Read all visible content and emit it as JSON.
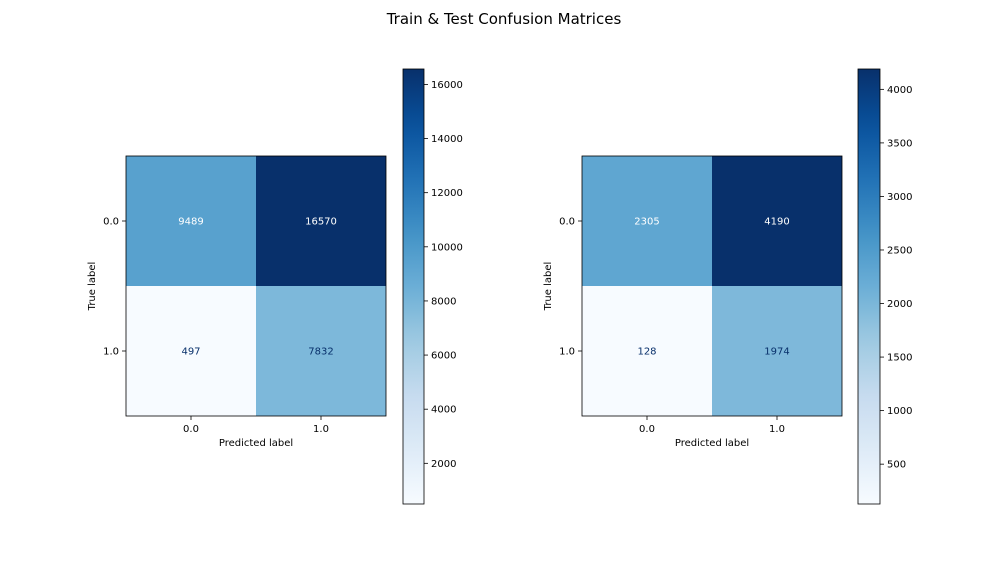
{
  "figure": {
    "title": "Train & Test Confusion Matrices"
  },
  "chart_data": [
    {
      "type": "heatmap",
      "title": "",
      "xlabel": "Predicted label",
      "ylabel": "True label",
      "x_categories": [
        "0.0",
        "1.0"
      ],
      "y_categories": [
        "0.0",
        "1.0"
      ],
      "values": [
        [
          9489,
          16570
        ],
        [
          497,
          7832
        ]
      ],
      "colormap": "Blues",
      "colorbar": {
        "range": [
          497,
          16570
        ],
        "ticks": [
          2000,
          4000,
          6000,
          8000,
          10000,
          12000,
          14000,
          16000
        ]
      }
    },
    {
      "type": "heatmap",
      "title": "",
      "xlabel": "Predicted label",
      "ylabel": "True label",
      "x_categories": [
        "0.0",
        "1.0"
      ],
      "y_categories": [
        "0.0",
        "1.0"
      ],
      "values": [
        [
          2305,
          4190
        ],
        [
          128,
          1974
        ]
      ],
      "colormap": "Blues",
      "colorbar": {
        "range": [
          128,
          4190
        ],
        "ticks": [
          500,
          1000,
          1500,
          2000,
          2500,
          3000,
          3500,
          4000
        ]
      }
    }
  ]
}
